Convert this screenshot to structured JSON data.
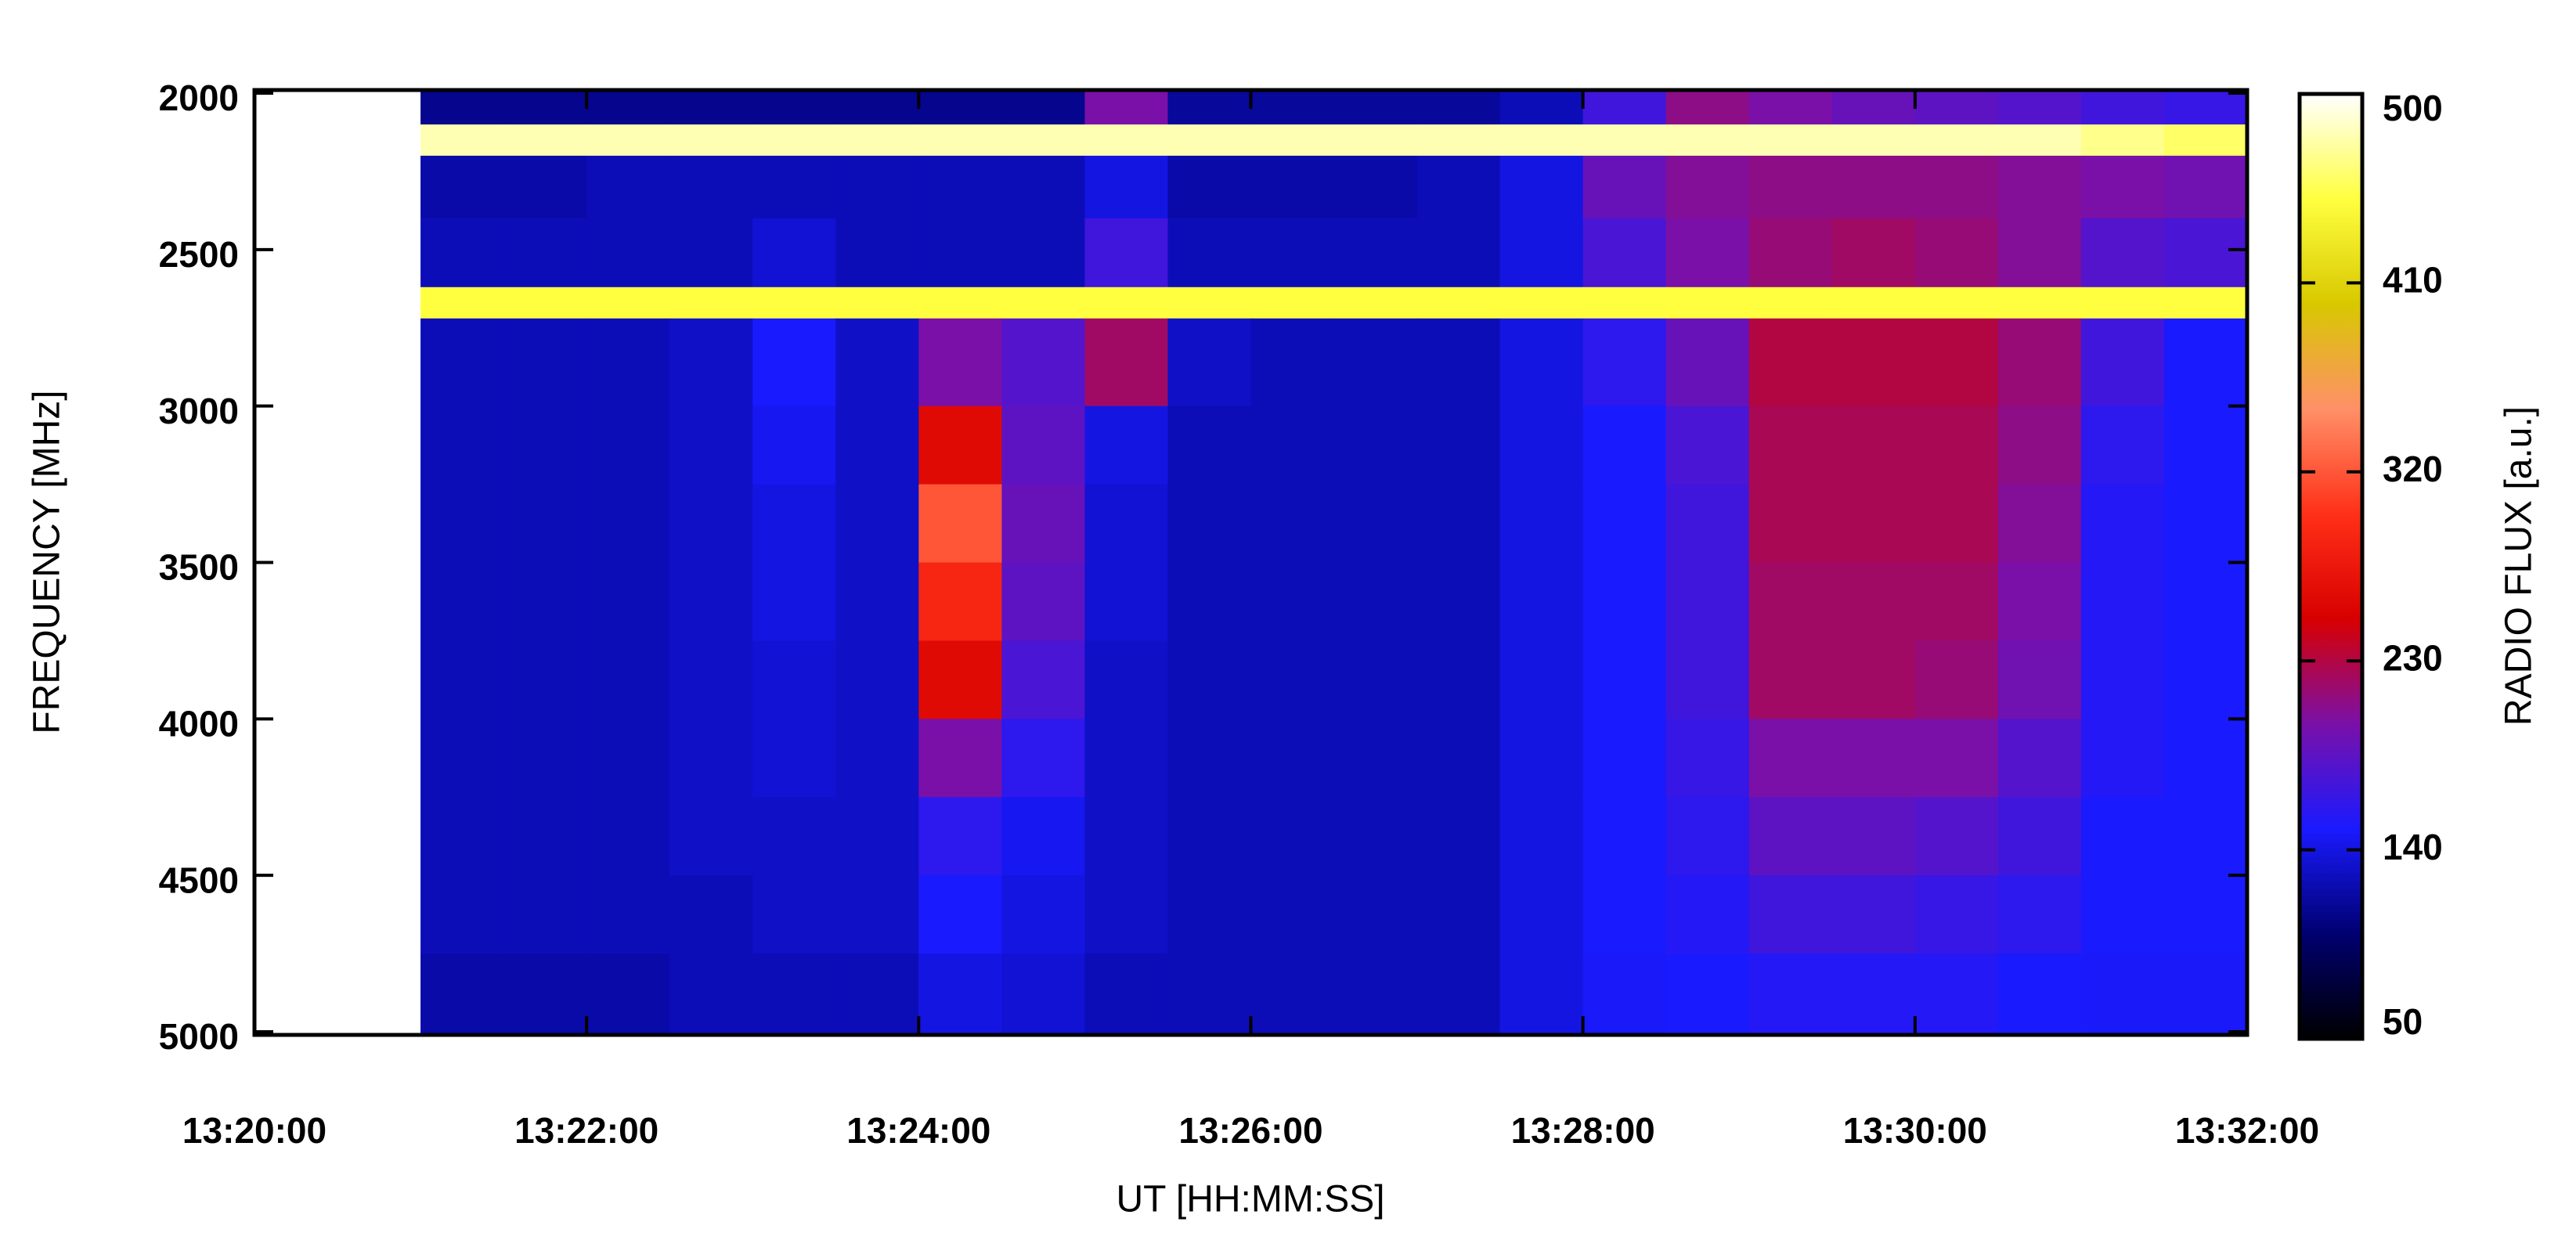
{
  "chart_data": {
    "type": "heatmap",
    "xlabel": "UT [HH:MM:SS]",
    "ylabel": "FREQUENCY [MHz]",
    "zlabel": "RADIO FLUX [a.u.]",
    "xlim": [
      "13:20:00",
      "13:32:00"
    ],
    "xticks": [
      "13:20:00",
      "13:22:00",
      "13:24:00",
      "13:26:00",
      "13:28:00",
      "13:30:00",
      "13:32:00"
    ],
    "ylim": [
      5010,
      1990
    ],
    "yticks": [
      2000,
      2500,
      3000,
      3500,
      4000,
      4500,
      5000
    ],
    "zlim": [
      50,
      500
    ],
    "zticks": [
      50,
      140,
      230,
      320,
      410,
      500
    ],
    "colormap": [
      "#000000",
      "#000070",
      "#1a1aff",
      "#7a10a8",
      "#d80000",
      "#ff3018",
      "#ff9068",
      "#d8c800",
      "#ffff40",
      "#ffffff"
    ],
    "xbins": [
      "13:20:00",
      "13:20:30",
      "13:21:00",
      "13:21:30",
      "13:22:00",
      "13:22:30",
      "13:23:00",
      "13:23:30",
      "13:24:00",
      "13:24:30",
      "13:25:00",
      "13:25:30",
      "13:26:00",
      "13:26:30",
      "13:27:00",
      "13:27:30",
      "13:28:00",
      "13:28:30",
      "13:29:00",
      "13:29:30",
      "13:30:00",
      "13:30:30",
      "13:31:00",
      "13:31:30",
      "13:32:00"
    ],
    "ybins": [
      1990,
      2100,
      2200,
      2400,
      2620,
      2720,
      3000,
      3250,
      3500,
      3750,
      4000,
      4250,
      4500,
      4750,
      5010
    ],
    "values": [
      [
        500,
        500,
        110,
        110,
        110,
        110,
        110,
        110,
        110,
        110,
        200,
        115,
        115,
        115,
        115,
        125,
        170,
        210,
        200,
        190,
        185,
        180,
        170,
        165
      ],
      [
        500,
        500,
        480,
        480,
        480,
        480,
        480,
        480,
        480,
        480,
        480,
        480,
        480,
        480,
        480,
        480,
        480,
        480,
        480,
        480,
        480,
        480,
        470,
        460
      ],
      [
        500,
        500,
        120,
        120,
        125,
        125,
        125,
        125,
        125,
        125,
        140,
        120,
        120,
        120,
        125,
        140,
        190,
        205,
        210,
        210,
        210,
        205,
        200,
        195
      ],
      [
        500,
        500,
        125,
        125,
        125,
        125,
        135,
        125,
        125,
        125,
        170,
        125,
        125,
        125,
        125,
        140,
        175,
        200,
        215,
        220,
        215,
        205,
        180,
        175
      ],
      [
        500,
        500,
        450,
        450,
        450,
        450,
        450,
        450,
        450,
        450,
        450,
        450,
        450,
        450,
        450,
        450,
        450,
        450,
        450,
        450,
        450,
        450,
        450,
        450
      ],
      [
        500,
        500,
        125,
        125,
        125,
        130,
        150,
        130,
        200,
        180,
        220,
        130,
        125,
        125,
        125,
        140,
        160,
        190,
        230,
        230,
        230,
        215,
        170,
        150
      ],
      [
        500,
        500,
        125,
        125,
        125,
        130,
        145,
        130,
        260,
        185,
        140,
        125,
        125,
        125,
        125,
        140,
        150,
        175,
        225,
        225,
        225,
        210,
        160,
        150
      ],
      [
        500,
        500,
        125,
        125,
        125,
        130,
        140,
        130,
        320,
        190,
        135,
        125,
        125,
        125,
        125,
        140,
        150,
        170,
        225,
        225,
        225,
        205,
        155,
        150
      ],
      [
        500,
        500,
        125,
        125,
        125,
        130,
        140,
        130,
        290,
        185,
        135,
        125,
        125,
        125,
        125,
        140,
        150,
        170,
        220,
        220,
        220,
        200,
        155,
        150
      ],
      [
        500,
        500,
        125,
        125,
        125,
        130,
        135,
        130,
        260,
        175,
        130,
        125,
        125,
        125,
        125,
        140,
        150,
        170,
        220,
        220,
        215,
        195,
        155,
        150
      ],
      [
        500,
        500,
        125,
        125,
        125,
        130,
        135,
        130,
        200,
        160,
        130,
        125,
        125,
        125,
        125,
        140,
        150,
        165,
        200,
        200,
        200,
        180,
        155,
        150
      ],
      [
        500,
        500,
        125,
        125,
        125,
        130,
        130,
        130,
        160,
        145,
        130,
        125,
        125,
        125,
        125,
        140,
        150,
        160,
        185,
        185,
        180,
        170,
        150,
        150
      ],
      [
        500,
        500,
        125,
        125,
        125,
        125,
        130,
        130,
        150,
        140,
        130,
        125,
        125,
        125,
        125,
        140,
        150,
        155,
        170,
        170,
        165,
        160,
        150,
        150
      ],
      [
        500,
        500,
        120,
        120,
        120,
        125,
        125,
        125,
        140,
        135,
        125,
        125,
        125,
        125,
        125,
        140,
        148,
        150,
        155,
        155,
        155,
        150,
        148,
        148
      ]
    ]
  }
}
